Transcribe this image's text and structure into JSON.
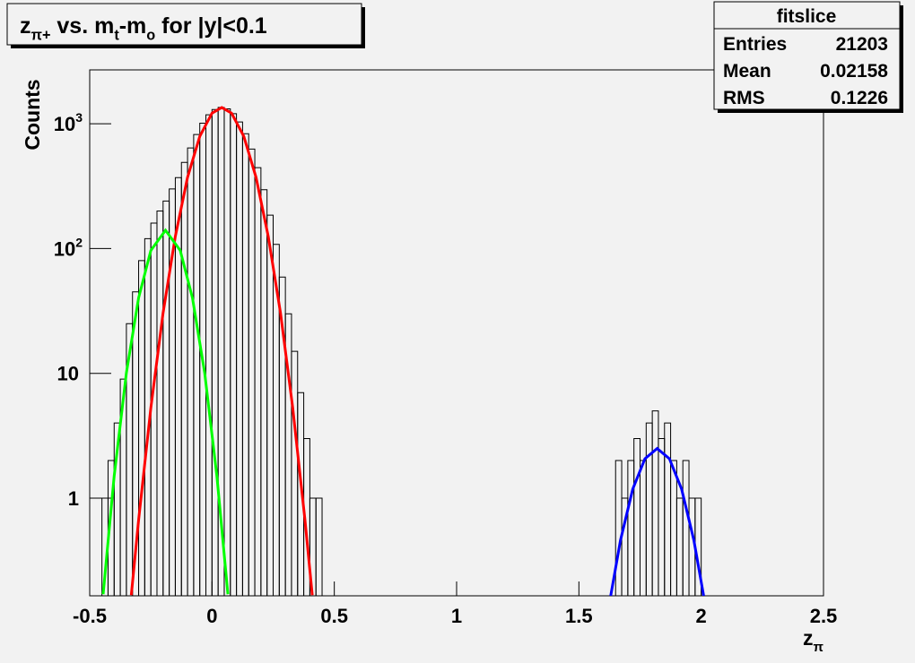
{
  "chart_data": {
    "type": "histogram",
    "title": [
      {
        "text": "z"
      },
      {
        "text": "π+",
        "shift": "sub"
      },
      {
        "text": " vs. m"
      },
      {
        "text": "t",
        "shift": "sub"
      },
      {
        "text": "-m"
      },
      {
        "text": "o",
        "shift": "sub"
      },
      {
        "text": " for |y|<0.1"
      }
    ],
    "xlabel": [
      {
        "text": "z"
      },
      {
        "text": "π",
        "shift": "sub"
      }
    ],
    "ylabel": "Counts",
    "log_y": true,
    "color": "#000000",
    "xlim": [
      -0.5,
      2.5
    ],
    "ylim": [
      0.165,
      2700
    ],
    "xticks": [
      -0.5,
      0,
      0.5,
      1,
      1.5,
      2,
      2.5
    ],
    "yticks": [
      1,
      10,
      {
        "value": 100,
        "label": "10",
        "exponent": "2"
      },
      {
        "value": 1000,
        "label": "10",
        "exponent": "3"
      }
    ],
    "bins": [
      -0.5,
      -0.475,
      -0.45,
      -0.425,
      -0.4,
      -0.375,
      -0.35,
      -0.325,
      -0.3,
      -0.275,
      -0.25,
      -0.225,
      -0.2,
      -0.175,
      -0.15,
      -0.125,
      -0.1,
      -0.075,
      -0.05,
      -0.025,
      0,
      0.025,
      0.05,
      0.075,
      0.1,
      0.125,
      0.15,
      0.175,
      0.2,
      0.225,
      0.25,
      0.275,
      0.3,
      0.325,
      0.35,
      0.375,
      0.4,
      0.425,
      0.45,
      0.475,
      0.5,
      0.525,
      0.55,
      0.575,
      0.6,
      0.625,
      0.65,
      0.675,
      0.7,
      0.725,
      0.75,
      0.775,
      0.8,
      0.825,
      0.85,
      0.875,
      0.9,
      0.925,
      0.95,
      0.975,
      1,
      1.025,
      1.05,
      1.075,
      1.1,
      1.125,
      1.15,
      1.175,
      1.2,
      1.225,
      1.25,
      1.275,
      1.3,
      1.325,
      1.35,
      1.375,
      1.4,
      1.425,
      1.45,
      1.475,
      1.5,
      1.525,
      1.55,
      1.575,
      1.6,
      1.625,
      1.65,
      1.675,
      1.7,
      1.725,
      1.75,
      1.775,
      1.8,
      1.825,
      1.85,
      1.875,
      1.9,
      1.925,
      1.95,
      1.975,
      2,
      2.025,
      2.05,
      2.075,
      2.1,
      2.125,
      2.15,
      2.175,
      2.2,
      2.225,
      2.25,
      2.275,
      2.3,
      2.325,
      2.35,
      2.375,
      2.4,
      2.425,
      2.45,
      2.475,
      2.5
    ],
    "counts": [
      0,
      0,
      1,
      2,
      4,
      9,
      25,
      45,
      80,
      120,
      160,
      200,
      240,
      300,
      370,
      490,
      640,
      820,
      1010,
      1180,
      1300,
      1350,
      1315,
      1203,
      1033,
      831,
      627,
      445,
      296,
      185,
      108,
      59,
      30,
      15,
      7,
      3,
      1,
      1,
      0,
      0,
      0,
      0,
      0,
      0,
      0,
      0,
      0,
      0,
      0,
      0,
      0,
      0,
      0,
      0,
      0,
      0,
      0,
      0,
      0,
      0,
      0,
      0,
      0,
      0,
      0,
      0,
      0,
      0,
      0,
      0,
      0,
      0,
      0,
      0,
      0,
      0,
      0,
      0,
      0,
      0,
      0,
      0,
      0,
      0,
      0,
      0,
      2,
      1,
      2,
      3,
      2,
      4,
      5,
      3,
      4,
      2,
      1,
      2,
      1,
      1,
      0,
      0,
      0,
      0,
      0,
      0,
      0,
      0,
      0,
      0,
      0,
      0,
      0,
      0,
      0,
      0,
      0,
      0,
      0,
      0
    ],
    "fits": [
      {
        "color": "#ff0000",
        "x": [
          -0.33,
          -0.3,
          -0.25,
          -0.2,
          -0.15,
          -0.1,
          -0.05,
          0,
          0.04,
          0.08,
          0.13,
          0.18,
          0.23,
          0.28,
          0.33,
          0.38,
          0.41
        ],
        "values": [
          0.167,
          0.67,
          5.3,
          30.5,
          125,
          372,
          792,
          1215,
          1350,
          1215,
          792,
          372,
          125,
          30.5,
          5.3,
          0.67,
          0.167
        ]
      },
      {
        "color": "#00ff00",
        "x": [
          -0.445,
          -0.4,
          -0.35,
          -0.3,
          -0.25,
          -0.19,
          -0.13,
          -0.08,
          -0.03,
          0.02,
          0.065
        ],
        "values": [
          0.17,
          1.5,
          10.1,
          40.3,
          96.6,
          140,
          96.6,
          40.3,
          10.1,
          1.5,
          0.17
        ]
      },
      {
        "color": "#0000ff",
        "x": [
          1.63,
          1.67,
          1.72,
          1.77,
          1.82,
          1.87,
          1.92,
          1.97,
          2.01
        ],
        "values": [
          0.165,
          0.46,
          1.18,
          2.07,
          2.5,
          2.07,
          1.18,
          0.46,
          0.165
        ]
      }
    ],
    "stats": {
      "title": "fitslice",
      "rows": [
        [
          "Entries",
          21203
        ],
        [
          "Mean",
          0.02158
        ],
        [
          "RMS",
          0.1226
        ]
      ]
    }
  }
}
